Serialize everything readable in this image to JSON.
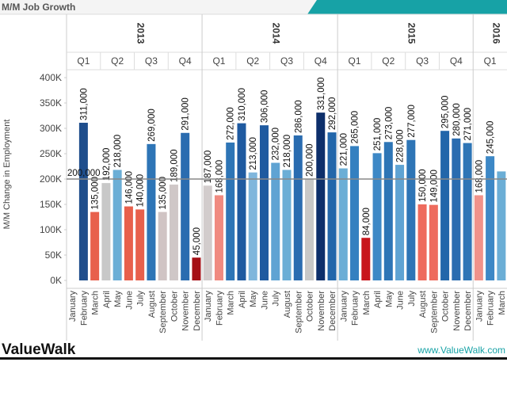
{
  "chart_data": {
    "type": "bar",
    "title": "M/M Job Growth",
    "y_label": "M/M Change in Employment",
    "years": [
      "2013",
      "2014",
      "2015",
      "2016"
    ],
    "quarters": [
      "Q1",
      "Q2",
      "Q3",
      "Q4",
      "Q1",
      "Q2",
      "Q3",
      "Q4",
      "Q1",
      "Q2",
      "Q3",
      "Q4",
      "Q1"
    ],
    "categories": [
      "January",
      "February",
      "March",
      "April",
      "May",
      "June",
      "July",
      "August",
      "September",
      "October",
      "November",
      "December",
      "January",
      "February",
      "March",
      "April",
      "May",
      "June",
      "July",
      "August",
      "September",
      "October",
      "November",
      "December",
      "January",
      "February",
      "March",
      "April",
      "May",
      "June",
      "July",
      "August",
      "September",
      "October",
      "November",
      "December",
      "January",
      "February",
      "March"
    ],
    "values": [
      null,
      311000,
      135000,
      192000,
      218000,
      146000,
      140000,
      269000,
      135000,
      189000,
      291000,
      45000,
      187000,
      168000,
      272000,
      310000,
      213000,
      306000,
      232000,
      218000,
      286000,
      200000,
      331000,
      292000,
      221000,
      265000,
      84000,
      251000,
      273000,
      228000,
      277000,
      150000,
      149000,
      295000,
      280000,
      271000,
      168000,
      245000,
      215000
    ],
    "value_labels": [
      null,
      "311,000",
      "135,000",
      "192,000",
      "218,000",
      "146,000",
      "140,000",
      "269,000",
      "135,000",
      "189,000",
      "291,000",
      "45,000",
      "187,000",
      "168,000",
      "272,000",
      "310,000",
      "213,000",
      "306,000",
      "232,000",
      "218,000",
      "286,000",
      "200,000",
      "331,000",
      "292,000",
      "221,000",
      "265,000",
      "84,000",
      "251,000",
      "273,000",
      "228,000",
      "277,000",
      "150,000",
      "149,000",
      "295,000",
      "280,000",
      "271,000",
      "168,000",
      "245,000",
      null
    ],
    "colors": [
      null,
      "#1f4e8c",
      "#e8604c",
      "#c8c8c8",
      "#6baed6",
      "#e8604c",
      "#e8604c",
      "#2e75b6",
      "#d0c4c4",
      "#cfc7c7",
      "#2a6cb0",
      "#a50f15",
      "#d2cccc",
      "#f08a80",
      "#2e75b6",
      "#1f5aa0",
      "#7fb6dc",
      "#1f5aa0",
      "#5fa3d3",
      "#6baed6",
      "#2a6cb0",
      "#c8c8c8",
      "#0d2f6b",
      "#2266aa",
      "#6baed6",
      "#3480c0",
      "#c8151b",
      "#3d88c6",
      "#2e75b6",
      "#5fa3d3",
      "#2e75b6",
      "#ee6b5d",
      "#ee6b5d",
      "#2266aa",
      "#2a6cb0",
      "#2e75b6",
      "#f0928a",
      "#3d88c6",
      "#6baed6"
    ],
    "ylim": [
      0,
      400000
    ],
    "yticks": [
      {
        "value": 0,
        "label": "0K"
      },
      {
        "value": 50000,
        "label": "50K"
      },
      {
        "value": 100000,
        "label": "100K"
      },
      {
        "value": 150000,
        "label": "150K"
      },
      {
        "value": 200000,
        "label": "200K"
      },
      {
        "value": 250000,
        "label": "250K"
      },
      {
        "value": 300000,
        "label": "300K"
      },
      {
        "value": 350000,
        "label": "350K"
      },
      {
        "value": 400000,
        "label": "400K"
      }
    ],
    "reference_line": {
      "value": 200000,
      "label": "200,000"
    },
    "brand": "ValueWalk",
    "url": "www.ValueWalk.com"
  }
}
